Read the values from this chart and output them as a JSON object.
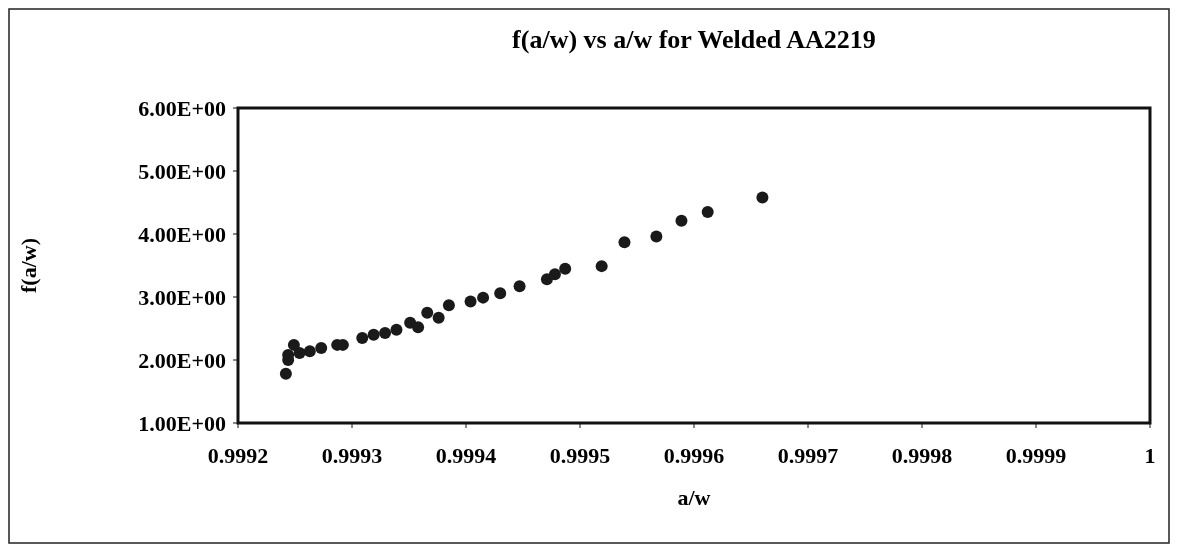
{
  "chart_data": {
    "type": "scatter",
    "title": "f(a/w) vs a/w for Welded AA2219",
    "xlabel": "a/w",
    "ylabel": "f(a/w)",
    "x": [
      0.999242,
      0.999244,
      0.999244,
      0.999249,
      0.999254,
      0.999263,
      0.999273,
      0.999287,
      0.999292,
      0.999309,
      0.999319,
      0.999329,
      0.999339,
      0.999351,
      0.999358,
      0.999366,
      0.999376,
      0.999385,
      0.999404,
      0.999415,
      0.99943,
      0.999447,
      0.999471,
      0.999478,
      0.999487,
      0.999519,
      0.999539,
      0.999567,
      0.999589,
      0.999612,
      0.99966
    ],
    "series": [
      {
        "color": "#1a1a1a",
        "values": [
          1.78,
          2.0,
          2.08,
          2.24,
          2.11,
          2.14,
          2.19,
          2.24,
          2.24,
          2.35,
          2.4,
          2.43,
          2.48,
          2.59,
          2.52,
          2.75,
          2.67,
          2.87,
          2.93,
          2.99,
          3.06,
          3.17,
          3.28,
          3.36,
          3.45,
          3.49,
          3.87,
          3.96,
          4.21,
          4.35,
          4.58
        ]
      }
    ],
    "xlim": [
      0.9992,
      1
    ],
    "xticks": [
      0.9992,
      0.9993,
      0.9994,
      0.9995,
      0.9996,
      0.9997,
      0.9998,
      0.9999,
      1
    ],
    "ylim": [
      1,
      6
    ],
    "yticks": [
      {
        "value": 1,
        "label": "1.00E+00"
      },
      {
        "value": 2,
        "label": "2.00E+00"
      },
      {
        "value": 3,
        "label": "3.00E+00"
      },
      {
        "value": 4,
        "label": "4.00E+00"
      },
      {
        "value": 5,
        "label": "5.00E+00"
      },
      {
        "value": 6,
        "label": "6.00E+00"
      }
    ],
    "grid": false,
    "marker": "circle"
  }
}
